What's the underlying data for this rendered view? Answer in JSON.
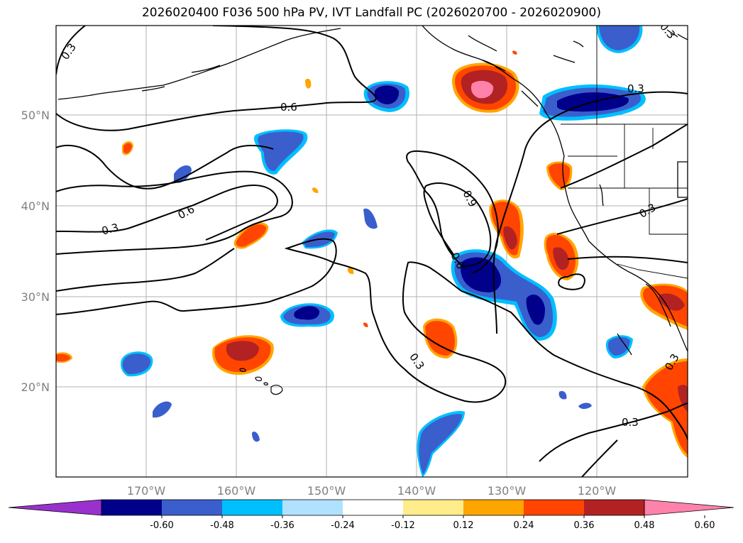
{
  "title": "2026020400 F036 500 hPa PV, IVT Landfall PC (2026020700 - 2026020900)",
  "map": {
    "lon_labels": [
      "170°W",
      "160°W",
      "150°W",
      "140°W",
      "130°W",
      "120°W"
    ],
    "lat_labels": [
      "50°N",
      "40°N",
      "30°N",
      "20°N"
    ],
    "contour_labels": [
      "0.3",
      "0.6",
      "0.3",
      "0.6",
      "0.3",
      "0.6",
      "0.9",
      "0.6",
      "0.3",
      "0.3",
      "0.3",
      "0.3",
      "0.3",
      "0.3"
    ],
    "contour_color": "#000000",
    "gridline_color": "#b0b0b0"
  },
  "colorbar": {
    "colors": [
      "#9932cc",
      "#00008b",
      "#3a5fcd",
      "#00bfff",
      "#b0e2ff",
      "#ffffff",
      "#ffec8b",
      "#ffa500",
      "#ff4500",
      "#b22222",
      "#ff82ab"
    ],
    "tick_labels": [
      "-0.60",
      "-0.48",
      "-0.36",
      "-0.24",
      "-0.12",
      "0.12",
      "0.24",
      "0.36",
      "0.48",
      "0.60"
    ]
  }
}
